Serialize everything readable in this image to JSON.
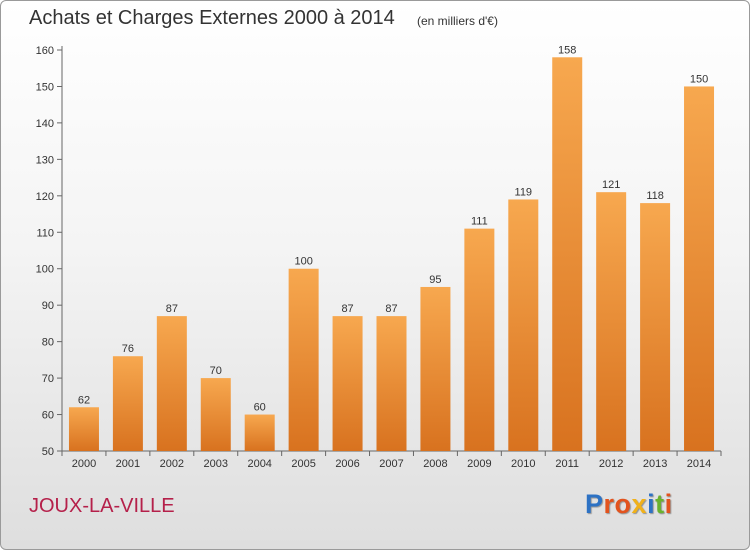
{
  "header": {
    "title": "Achats et Charges Externes 2000 à 2014",
    "subtitle": "(en milliers d'€)"
  },
  "footer": {
    "commune": "JOUX-LA-VILLE",
    "brand": [
      "P",
      "r",
      "o",
      "x",
      "i",
      "t",
      "i"
    ]
  },
  "colors": {
    "bar_light": "#f7a84f",
    "bar_dark": "#d8721f",
    "commune_text": "#b5204a",
    "brand_letters": [
      "#2d72c4",
      "#e2531e",
      "#e2531e",
      "#f0b11a",
      "#2d72c4",
      "#6ab22e",
      "#e2531e"
    ]
  },
  "chart_data": {
    "type": "bar",
    "categories": [
      "2000",
      "2001",
      "2002",
      "2003",
      "2004",
      "2005",
      "2006",
      "2007",
      "2008",
      "2009",
      "2010",
      "2011",
      "2012",
      "2013",
      "2014"
    ],
    "values": [
      62,
      76,
      87,
      70,
      60,
      100,
      87,
      87,
      95,
      111,
      119,
      158,
      121,
      118,
      150
    ],
    "ylim": [
      50,
      160
    ],
    "yticks": [
      50,
      60,
      70,
      80,
      90,
      100,
      110,
      120,
      130,
      140,
      150,
      160
    ],
    "grid": false,
    "data_labels": true
  }
}
